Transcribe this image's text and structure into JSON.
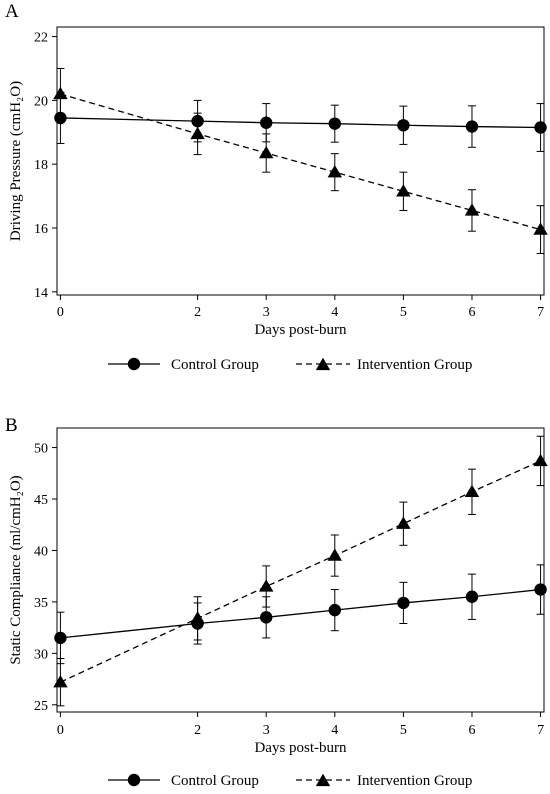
{
  "chart_data": [
    {
      "panel": "A",
      "type": "line",
      "xlabel": "Days post-burn",
      "ylabel": "Driving Pressure (cmH₂O)",
      "x": [
        0,
        2,
        3,
        4,
        5,
        6,
        7
      ],
      "x_ticks": [
        "0",
        "2",
        "3",
        "4",
        "5",
        "6",
        "7"
      ],
      "xlim": [
        -0.05,
        7.05
      ],
      "ylim": [
        13.9,
        22.3
      ],
      "y_ticks": [
        "14",
        "16",
        "18",
        "20",
        "22"
      ],
      "series": [
        {
          "name": "Control Group",
          "marker": "circle",
          "line_style": "solid",
          "values": [
            19.45,
            19.35,
            19.3,
            19.27,
            19.22,
            19.18,
            19.15
          ],
          "error": [
            0.8,
            0.65,
            0.6,
            0.58,
            0.6,
            0.65,
            0.75
          ]
        },
        {
          "name": "Intervention Group",
          "marker": "triangle",
          "line_style": "dashed",
          "values": [
            20.2,
            18.95,
            18.35,
            17.75,
            17.15,
            16.55,
            15.95
          ],
          "error": [
            0.8,
            0.65,
            0.6,
            0.58,
            0.6,
            0.65,
            0.75
          ]
        }
      ],
      "legend_position": "bottom"
    },
    {
      "panel": "B",
      "type": "line",
      "xlabel": "Days post-burn",
      "ylabel": "Static Compliance (ml/cmH₂O)",
      "x": [
        0,
        2,
        3,
        4,
        5,
        6,
        7
      ],
      "x_ticks": [
        "0",
        "2",
        "3",
        "4",
        "5",
        "6",
        "7"
      ],
      "xlim": [
        -0.05,
        7.05
      ],
      "ylim": [
        24.3,
        51.9
      ],
      "y_ticks": [
        "25",
        "30",
        "35",
        "40",
        "45",
        "50"
      ],
      "series": [
        {
          "name": "Control Group",
          "marker": "circle",
          "line_style": "solid",
          "values": [
            31.5,
            32.9,
            33.5,
            34.2,
            34.9,
            35.5,
            36.2
          ],
          "error": [
            2.5,
            2.0,
            2.0,
            2.0,
            2.0,
            2.2,
            2.4
          ]
        },
        {
          "name": "Intervention Group",
          "marker": "triangle",
          "line_style": "dashed",
          "values": [
            27.2,
            33.4,
            36.5,
            39.5,
            42.6,
            45.7,
            48.7
          ],
          "error": [
            2.3,
            2.1,
            2.0,
            2.0,
            2.1,
            2.2,
            2.4
          ]
        }
      ],
      "legend_position": "bottom"
    }
  ]
}
